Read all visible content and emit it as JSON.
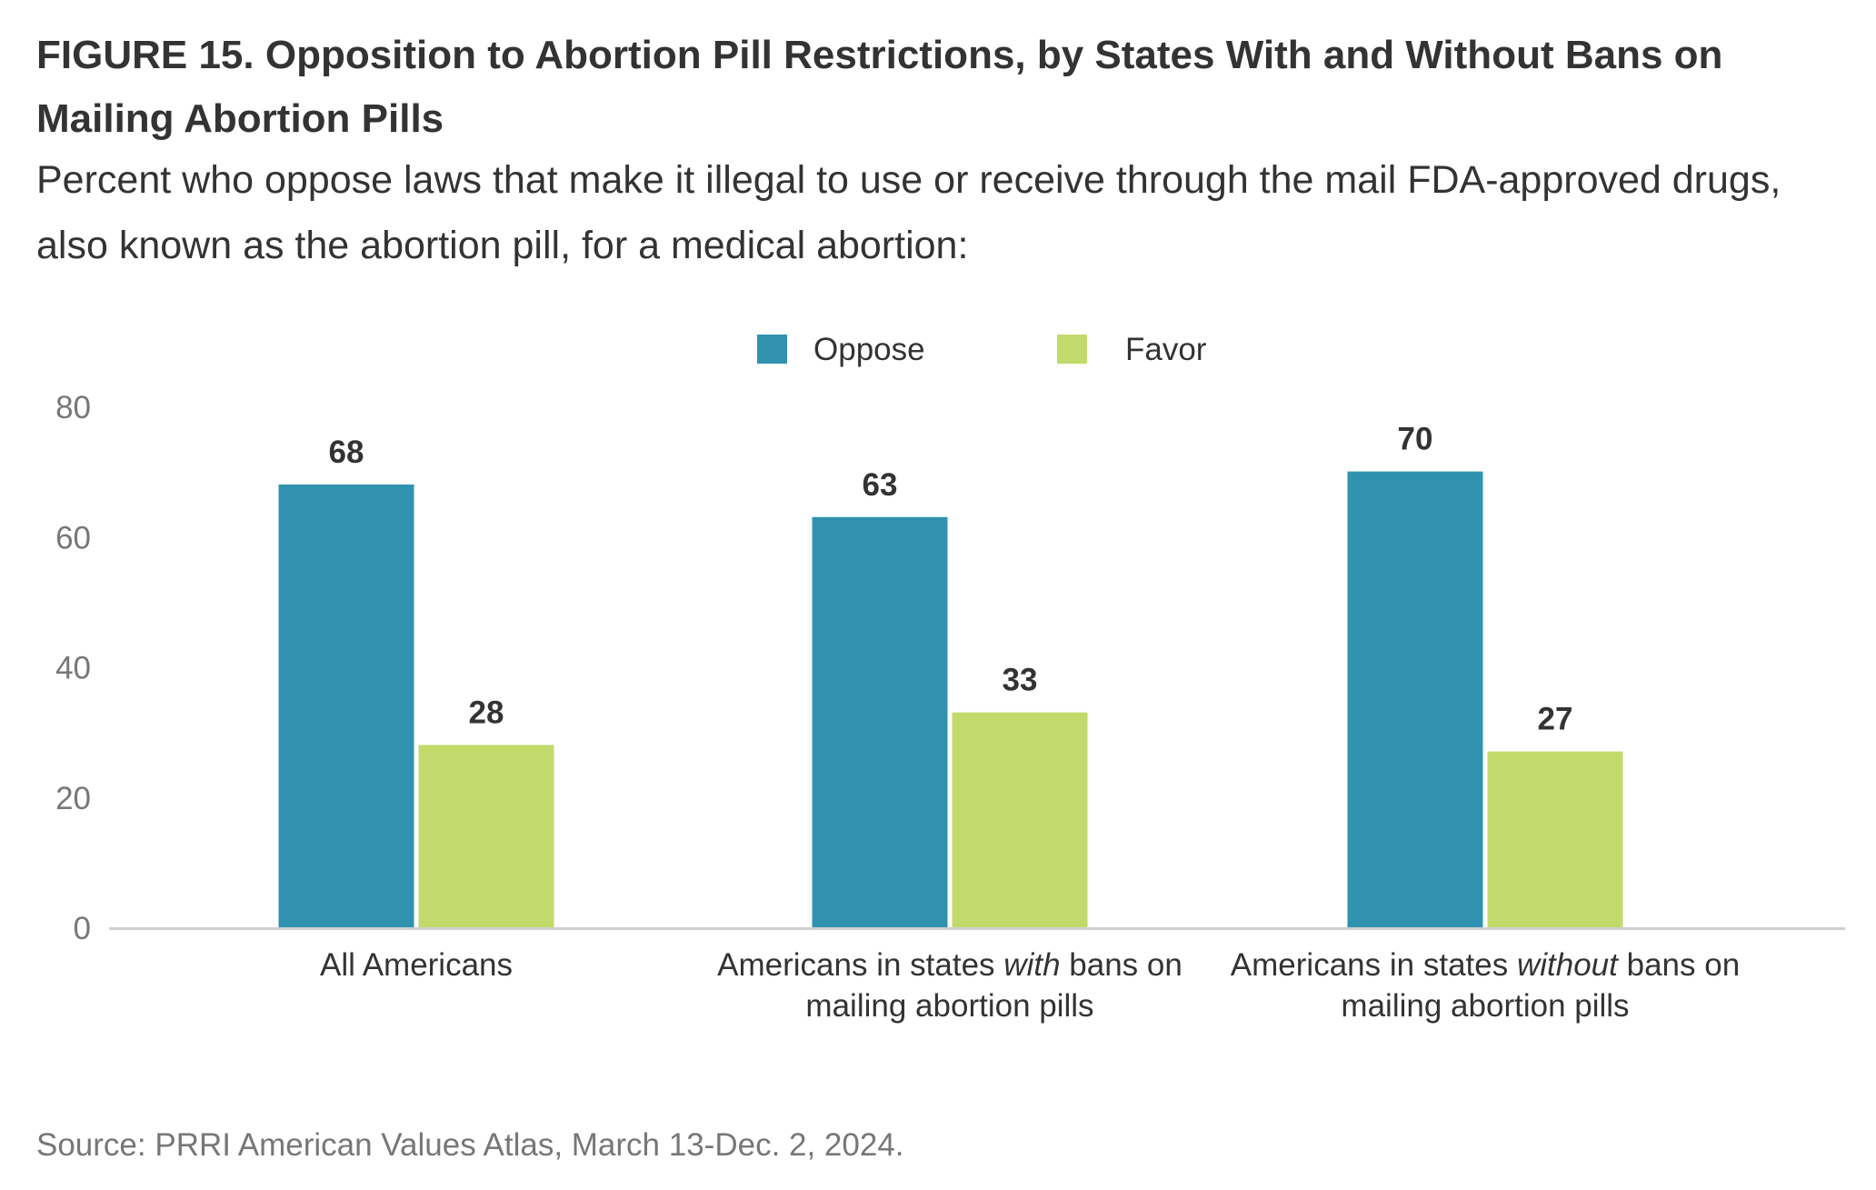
{
  "figure": {
    "title": "FIGURE 15. Opposition to Abortion Pill Restrictions, by States With and Without Bans on Mailing Abortion Pills",
    "subtitle": "Percent who oppose laws that make it illegal to use or receive through the mail FDA-approved drugs, also known as the abortion pill, for a medical abortion:",
    "source": "Source: PRRI American Values Atlas, March 13-Dec. 2, 2024."
  },
  "chart_data": {
    "type": "bar",
    "title": "",
    "xlabel": "",
    "ylabel": "",
    "ylim": [
      0,
      80
    ],
    "yticks": [
      0,
      20,
      40,
      60,
      80
    ],
    "grid": false,
    "legend_position": "top-center",
    "categories": [
      [
        {
          "text": "All Americans",
          "italic": false
        }
      ],
      [
        {
          "text": "Americans in states ",
          "italic": false
        },
        {
          "text": "with",
          "italic": true
        },
        {
          "text": " bans on mailing abortion pills",
          "italic": false
        }
      ],
      [
        {
          "text": "Americans in states ",
          "italic": false
        },
        {
          "text": "without",
          "italic": true
        },
        {
          "text": " bans on mailing abortion pills",
          "italic": false
        }
      ]
    ],
    "series": [
      {
        "name": "Oppose",
        "color": "#3192b0",
        "values": [
          68,
          63,
          70
        ]
      },
      {
        "name": "Favor",
        "color": "#c2da6b",
        "values": [
          28,
          33,
          27
        ]
      }
    ],
    "colors": {
      "axis_line": "#d0d0d0",
      "tick_label": "#777777",
      "value_label": "#333333",
      "category_label": "#333333"
    }
  }
}
